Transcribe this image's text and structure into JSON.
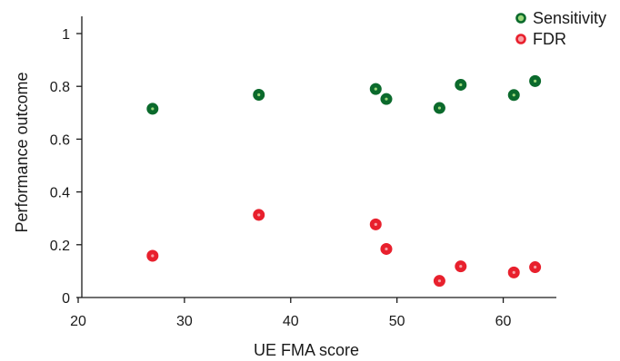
{
  "chart_data": {
    "type": "scatter",
    "xlabel": "UE FMA score",
    "ylabel": "Performance outcome",
    "xlim": [
      20,
      65
    ],
    "ylim": [
      0,
      1.05
    ],
    "x_ticks": [
      20,
      30,
      40,
      50,
      60
    ],
    "y_ticks": [
      0,
      0.2,
      0.4,
      0.6,
      0.8,
      1
    ],
    "x_tick_labels": [
      "20",
      "30",
      "40",
      "50",
      "60"
    ],
    "y_tick_labels": [
      "0",
      "0.2",
      "0.4",
      "0.6",
      "0.8",
      "1"
    ],
    "grid": false,
    "legend_position": "top-right",
    "series": [
      {
        "name": "Sensitivity",
        "color": "#0b6a2c",
        "center_color": "#9bd77a",
        "x": [
          27,
          37,
          48,
          49,
          54,
          56,
          61,
          63
        ],
        "y": [
          0.715,
          0.768,
          0.79,
          0.752,
          0.718,
          0.806,
          0.767,
          0.82
        ]
      },
      {
        "name": "FDR",
        "color": "#e8202d",
        "center_color": "#f7a1a6",
        "x": [
          27,
          37,
          48,
          49,
          54,
          56,
          61,
          63
        ],
        "y": [
          0.158,
          0.313,
          0.277,
          0.184,
          0.063,
          0.118,
          0.095,
          0.115
        ]
      }
    ]
  }
}
